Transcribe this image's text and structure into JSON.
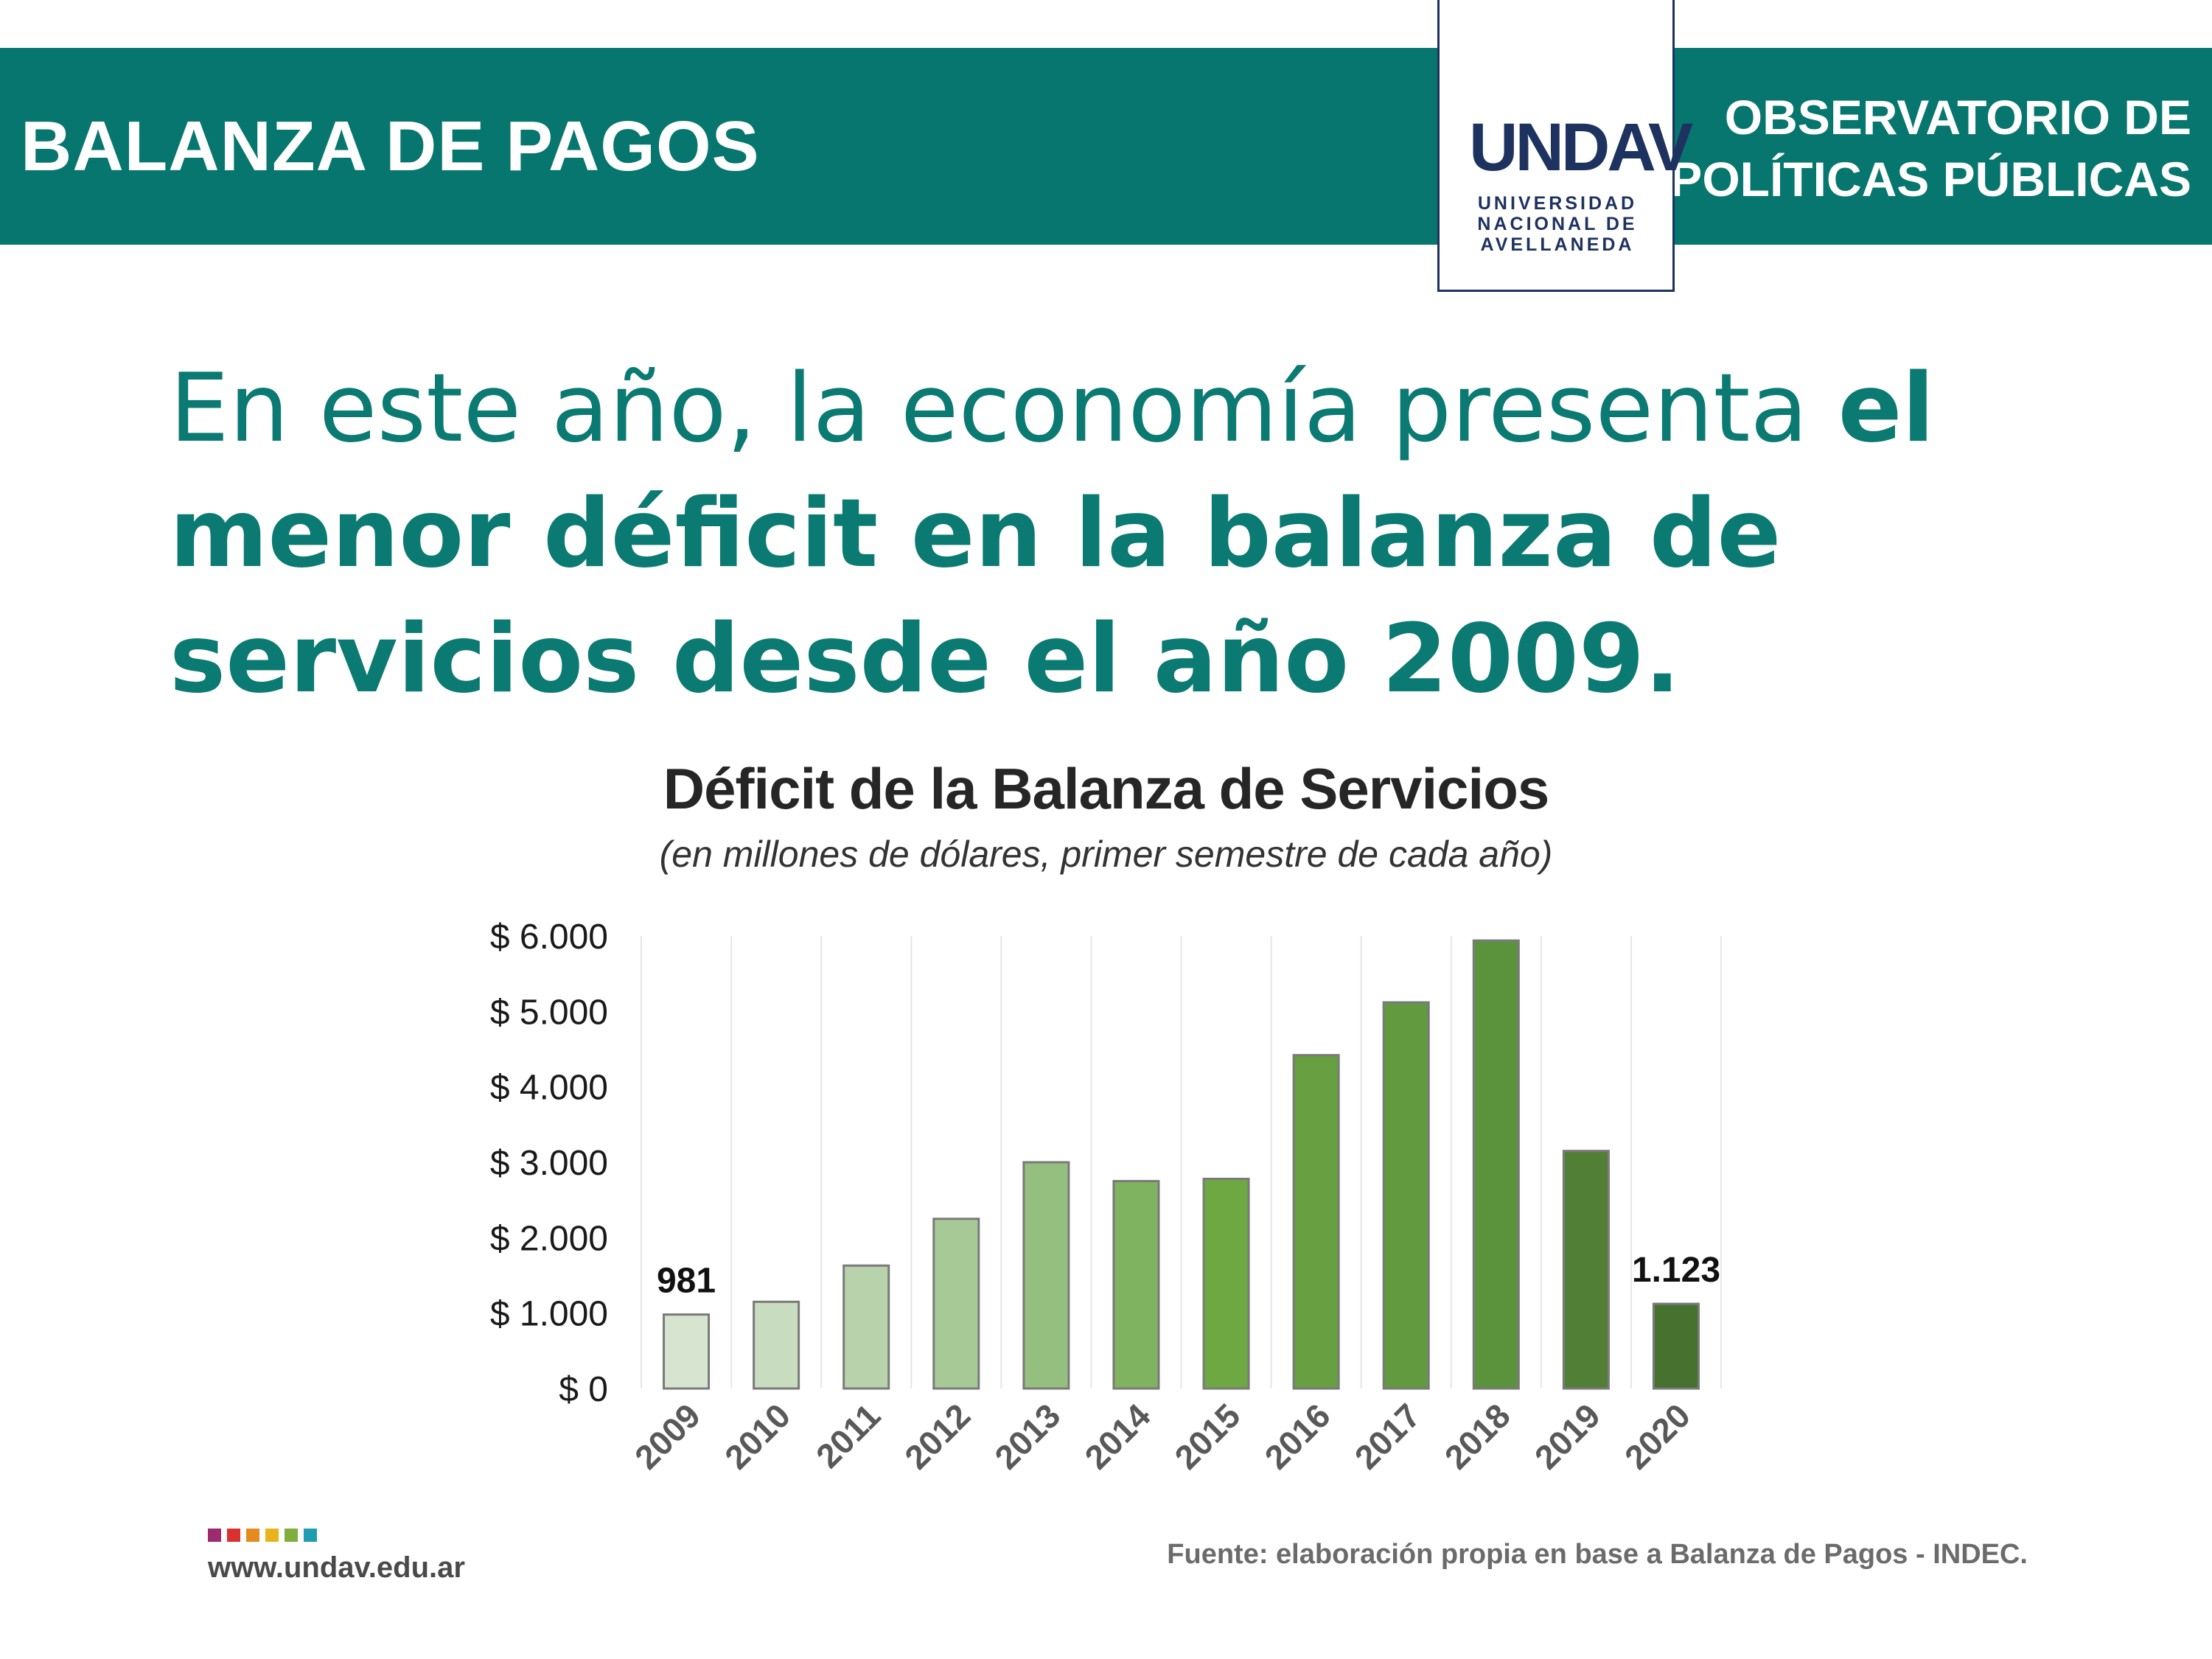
{
  "header": {
    "left_title": "BALANZA DE PAGOS",
    "right_line1": "OBSERVATORIO DE",
    "right_line2": "POLÍTICAS PÚBLICAS",
    "logo_mark": "UNDAV",
    "logo_line1": "UNIVERSIDAD",
    "logo_line2": "NACIONAL DE",
    "logo_line3": "AVELLANEDA"
  },
  "headline": {
    "light": "En este año, la economía presenta ",
    "bold": "el menor déficit en la balanza de servicios desde el año 2009."
  },
  "chart_data": {
    "type": "bar",
    "title": "Déficit de la Balanza de Servicios",
    "subtitle": "(en millones de dólares, primer semestre de cada año)",
    "categories": [
      "2009",
      "2010",
      "2011",
      "2012",
      "2013",
      "2014",
      "2015",
      "2016",
      "2017",
      "2018",
      "2019",
      "2020"
    ],
    "values": [
      981,
      1150,
      1630,
      2250,
      3000,
      2750,
      2780,
      4420,
      5120,
      5940,
      3150,
      1123
    ],
    "colors": [
      "#d7e4d0",
      "#c8dcbf",
      "#b8d2ab",
      "#a7c996",
      "#95bf7e",
      "#7fb35f",
      "#6da843",
      "#679f41",
      "#619a3f",
      "#5a933c",
      "#527f36",
      "#46712e"
    ],
    "bar_border": "#7a7a7a",
    "yticks": [
      "$ 0",
      "$ 1.000",
      "$ 2.000",
      "$ 3.000",
      "$ 4.000",
      "$ 5.000",
      "$ 6.000"
    ],
    "ylim": [
      0,
      6000
    ],
    "grid": "vertical",
    "data_labels": [
      {
        "index": 0,
        "text": "981"
      },
      {
        "index": 11,
        "text": "1.123"
      }
    ]
  },
  "footer": {
    "url": "www.undav.edu.ar",
    "source": "Fuente: elaboración propia en base a Balanza de Pagos - INDEC.",
    "dot_colors": [
      "#9b2a6e",
      "#d8312f",
      "#e38b1f",
      "#e8b41c",
      "#7fae3c",
      "#1f9db0"
    ]
  },
  "theme": {
    "banner": "#06766e",
    "headline": "#0b7a72",
    "logo": "#1e3260"
  }
}
